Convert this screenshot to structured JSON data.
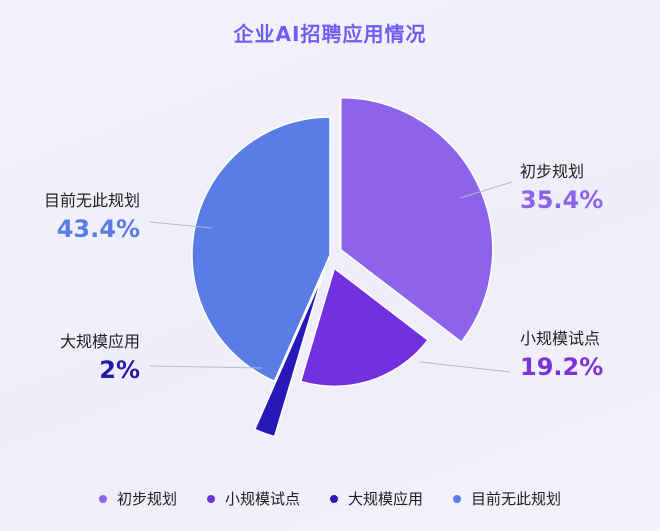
{
  "chart_data": {
    "type": "pie",
    "title": "企业AI招聘应用情况",
    "slices": [
      {
        "label": "初步规划",
        "value": 35.4,
        "display": "35.4%",
        "color": "#8c63ea",
        "pct_color": "#8c63ea"
      },
      {
        "label": "小规模试点",
        "value": 19.2,
        "display": "19.2%",
        "color": "#7230e0",
        "pct_color": "#7a35d8"
      },
      {
        "label": "大规模应用",
        "value": 2,
        "display": "2%",
        "color": "#2818b8",
        "pct_color": "#231aa8"
      },
      {
        "label": "目前无此规划",
        "value": 43.4,
        "display": "43.4%",
        "color": "#5a7ce6",
        "pct_color": "#5a7ce6"
      }
    ],
    "legend_position": "bottom"
  }
}
